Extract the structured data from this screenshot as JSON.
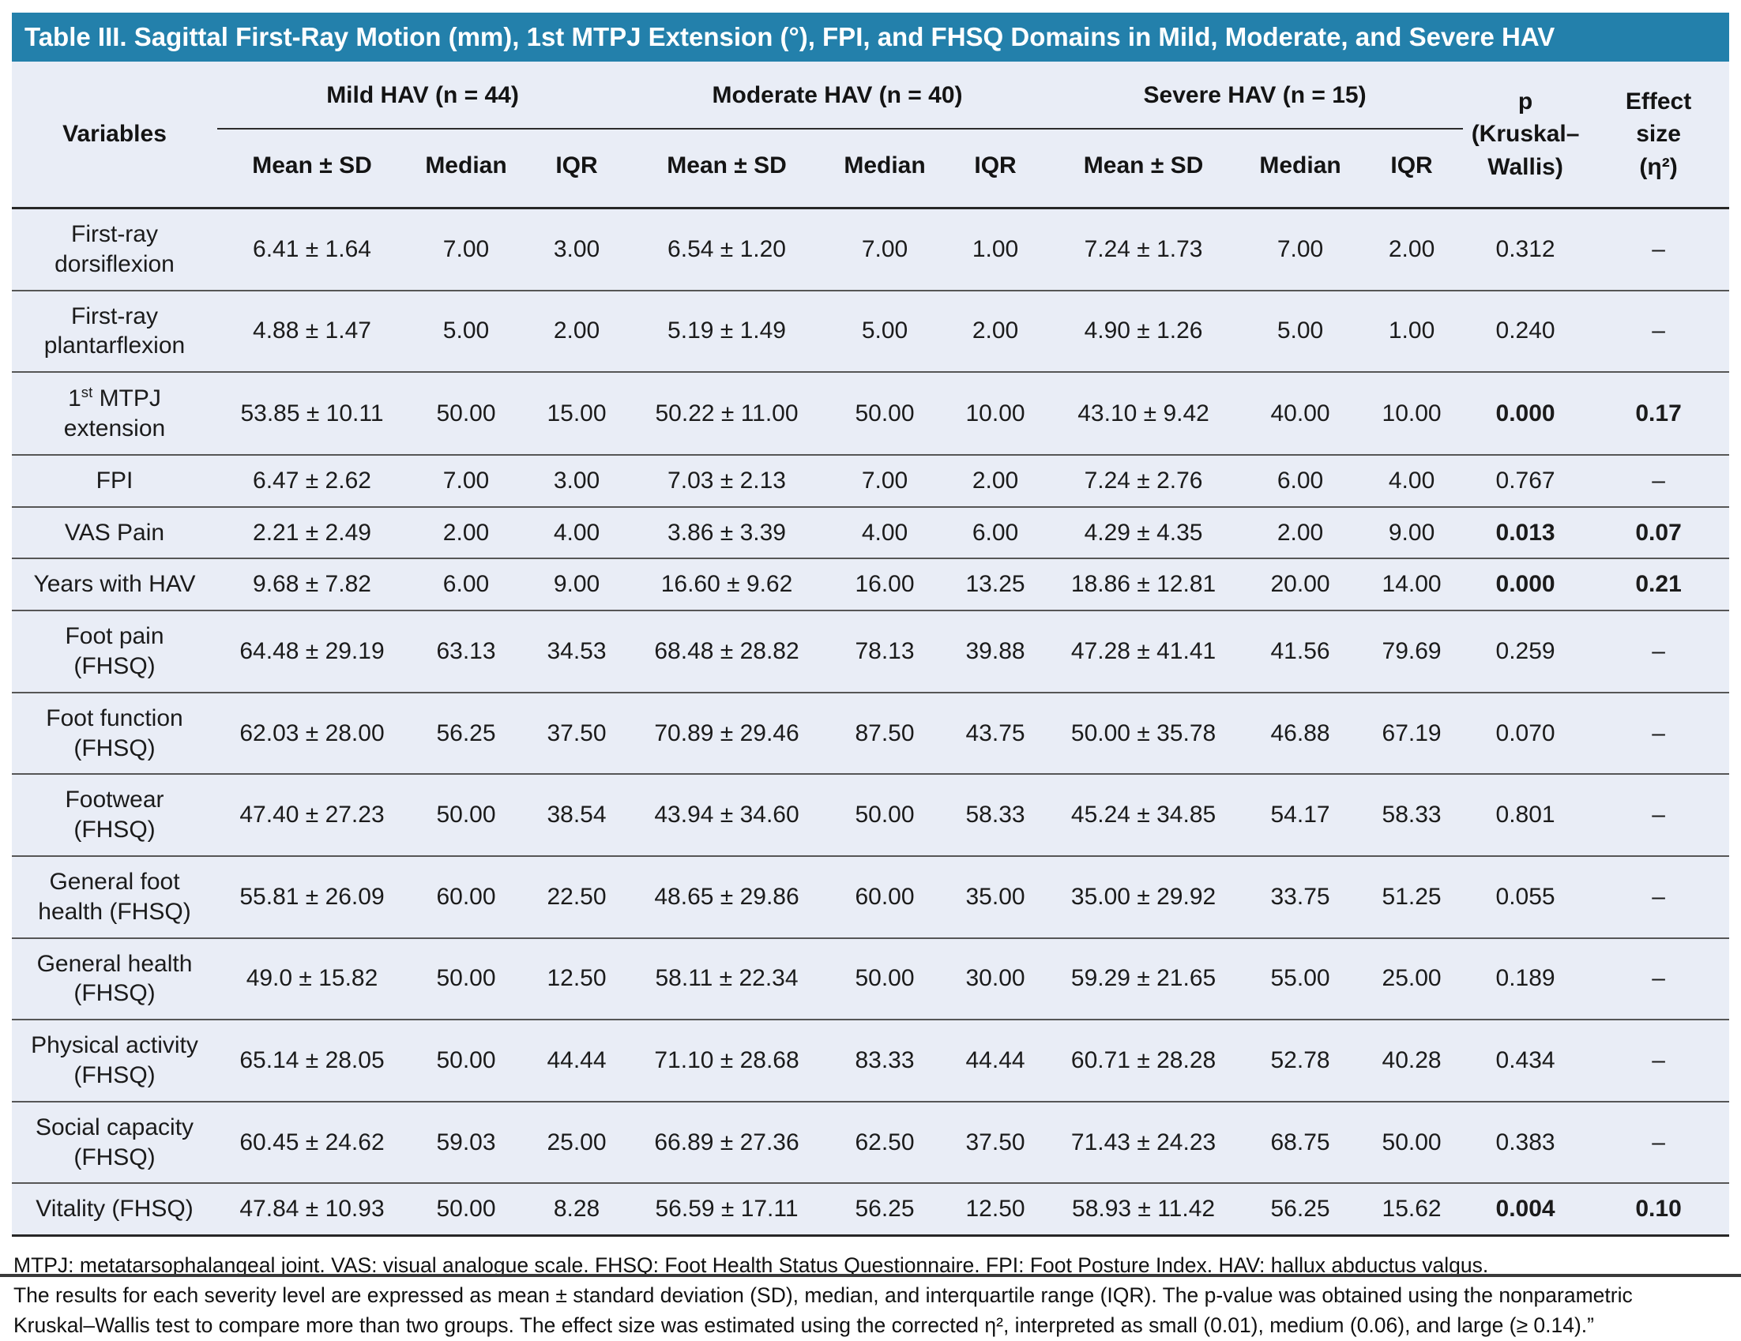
{
  "title": "Table III. Sagittal First-Ray Motion (mm), 1st MTPJ Extension (°), FPI, and FHSQ Domains in Mild, Moderate, and Severe HAV",
  "colors": {
    "title_bar_bg": "#2380ab",
    "title_text": "#ffffff",
    "table_bg": "#e9edf6",
    "rule_dark": "#272727",
    "rule_light": "#565656"
  },
  "table": {
    "variables_header": "Variables",
    "groups": [
      {
        "label": "Mild HAV (n = 44)"
      },
      {
        "label": "Moderate HAV (n = 40)"
      },
      {
        "label": "Severe HAV (n = 15)"
      }
    ],
    "sub_headers": [
      "Mean ± SD",
      "Median",
      "IQR"
    ],
    "p_header": "p\n(Kruskal–\nWallis)",
    "effect_header": "Effect\nsize\n(η²)",
    "rows": [
      {
        "variable": "First-ray dorsiflexion",
        "mild": {
          "mean_sd": "6.41 ± 1.64",
          "median": "7.00",
          "iqr": "3.00"
        },
        "moderate": {
          "mean_sd": "6.54 ± 1.20",
          "median": "7.00",
          "iqr": "1.00"
        },
        "severe": {
          "mean_sd": "7.24 ± 1.73",
          "median": "7.00",
          "iqr": "2.00"
        },
        "p": "0.312",
        "effect_size": "–",
        "significant": false
      },
      {
        "variable": "First-ray plantarflexion",
        "mild": {
          "mean_sd": "4.88 ± 1.47",
          "median": "5.00",
          "iqr": "2.00"
        },
        "moderate": {
          "mean_sd": "5.19 ± 1.49",
          "median": "5.00",
          "iqr": "2.00"
        },
        "severe": {
          "mean_sd": "4.90 ± 1.26",
          "median": "5.00",
          "iqr": "1.00"
        },
        "p": "0.240",
        "effect_size": "–",
        "significant": false
      },
      {
        "variable": "1st MTPJ extension",
        "mild": {
          "mean_sd": "53.85 ± 10.11",
          "median": "50.00",
          "iqr": "15.00"
        },
        "moderate": {
          "mean_sd": "50.22 ± 11.00",
          "median": "50.00",
          "iqr": "10.00"
        },
        "severe": {
          "mean_sd": "43.10 ± 9.42",
          "median": "40.00",
          "iqr": "10.00"
        },
        "p": "0.000",
        "effect_size": "0.17",
        "significant": true
      },
      {
        "variable": "FPI",
        "mild": {
          "mean_sd": "6.47 ± 2.62",
          "median": "7.00",
          "iqr": "3.00"
        },
        "moderate": {
          "mean_sd": "7.03 ± 2.13",
          "median": "7.00",
          "iqr": "2.00"
        },
        "severe": {
          "mean_sd": "7.24 ± 2.76",
          "median": "6.00",
          "iqr": "4.00"
        },
        "p": "0.767",
        "effect_size": "–",
        "significant": false
      },
      {
        "variable": "VAS Pain",
        "mild": {
          "mean_sd": "2.21 ± 2.49",
          "median": "2.00",
          "iqr": "4.00"
        },
        "moderate": {
          "mean_sd": "3.86 ± 3.39",
          "median": "4.00",
          "iqr": "6.00"
        },
        "severe": {
          "mean_sd": "4.29 ± 4.35",
          "median": "2.00",
          "iqr": "9.00"
        },
        "p": "0.013",
        "effect_size": "0.07",
        "significant": true
      },
      {
        "variable": "Years with HAV",
        "mild": {
          "mean_sd": "9.68 ± 7.82",
          "median": "6.00",
          "iqr": "9.00"
        },
        "moderate": {
          "mean_sd": "16.60 ± 9.62",
          "median": "16.00",
          "iqr": "13.25"
        },
        "severe": {
          "mean_sd": "18.86 ± 12.81",
          "median": "20.00",
          "iqr": "14.00"
        },
        "p": "0.000",
        "effect_size": "0.21",
        "significant": true
      },
      {
        "variable": "Foot pain (FHSQ)",
        "mild": {
          "mean_sd": "64.48 ± 29.19",
          "median": "63.13",
          "iqr": "34.53"
        },
        "moderate": {
          "mean_sd": "68.48 ± 28.82",
          "median": "78.13",
          "iqr": "39.88"
        },
        "severe": {
          "mean_sd": "47.28 ± 41.41",
          "median": "41.56",
          "iqr": "79.69"
        },
        "p": "0.259",
        "effect_size": "–",
        "significant": false
      },
      {
        "variable": "Foot function (FHSQ)",
        "mild": {
          "mean_sd": "62.03 ± 28.00",
          "median": "56.25",
          "iqr": "37.50"
        },
        "moderate": {
          "mean_sd": "70.89 ± 29.46",
          "median": "87.50",
          "iqr": "43.75"
        },
        "severe": {
          "mean_sd": "50.00 ± 35.78",
          "median": "46.88",
          "iqr": "67.19"
        },
        "p": "0.070",
        "effect_size": "–",
        "significant": false
      },
      {
        "variable": "Footwear (FHSQ)",
        "mild": {
          "mean_sd": "47.40 ± 27.23",
          "median": "50.00",
          "iqr": "38.54"
        },
        "moderate": {
          "mean_sd": "43.94 ± 34.60",
          "median": "50.00",
          "iqr": "58.33"
        },
        "severe": {
          "mean_sd": "45.24 ± 34.85",
          "median": "54.17",
          "iqr": "58.33"
        },
        "p": "0.801",
        "effect_size": "–",
        "significant": false
      },
      {
        "variable": "General foot health (FHSQ)",
        "mild": {
          "mean_sd": "55.81 ± 26.09",
          "median": "60.00",
          "iqr": "22.50"
        },
        "moderate": {
          "mean_sd": "48.65 ± 29.86",
          "median": "60.00",
          "iqr": "35.00"
        },
        "severe": {
          "mean_sd": "35.00 ± 29.92",
          "median": "33.75",
          "iqr": "51.25"
        },
        "p": "0.055",
        "effect_size": "–",
        "significant": false
      },
      {
        "variable": "General health (FHSQ)",
        "mild": {
          "mean_sd": "49.0 ± 15.82",
          "median": "50.00",
          "iqr": "12.50"
        },
        "moderate": {
          "mean_sd": "58.11 ± 22.34",
          "median": "50.00",
          "iqr": "30.00"
        },
        "severe": {
          "mean_sd": "59.29 ± 21.65",
          "median": "55.00",
          "iqr": "25.00"
        },
        "p": "0.189",
        "effect_size": "–",
        "significant": false
      },
      {
        "variable": "Physical activity (FHSQ)",
        "mild": {
          "mean_sd": "65.14 ± 28.05",
          "median": "50.00",
          "iqr": "44.44"
        },
        "moderate": {
          "mean_sd": "71.10 ± 28.68",
          "median": "83.33",
          "iqr": "44.44"
        },
        "severe": {
          "mean_sd": "60.71 ± 28.28",
          "median": "52.78",
          "iqr": "40.28"
        },
        "p": "0.434",
        "effect_size": "–",
        "significant": false
      },
      {
        "variable": "Social capacity (FHSQ)",
        "mild": {
          "mean_sd": "60.45 ± 24.62",
          "median": "59.03",
          "iqr": "25.00"
        },
        "moderate": {
          "mean_sd": "66.89 ± 27.36",
          "median": "62.50",
          "iqr": "37.50"
        },
        "severe": {
          "mean_sd": "71.43 ± 24.23",
          "median": "68.75",
          "iqr": "50.00"
        },
        "p": "0.383",
        "effect_size": "–",
        "significant": false
      },
      {
        "variable": "Vitality (FHSQ)",
        "mild": {
          "mean_sd": "47.84 ± 10.93",
          "median": "50.00",
          "iqr": "8.28"
        },
        "moderate": {
          "mean_sd": "56.59 ± 17.11",
          "median": "56.25",
          "iqr": "12.50"
        },
        "severe": {
          "mean_sd": "58.93 ± 11.42",
          "median": "56.25",
          "iqr": "15.62"
        },
        "p": "0.004",
        "effect_size": "0.10",
        "significant": true
      }
    ]
  },
  "footnotes": {
    "abbreviations": "MTPJ: metatarsophalangeal joint. VAS: visual analogue scale. FHSQ: Foot Health Status Questionnaire. FPI: Foot Posture Index. HAV: hallux abductus valgus.",
    "methods": "The results for each severity level are expressed as mean ± standard deviation (SD), median, and interquartile range (IQR). The p-value was obtained using the nonparametric\nKruskal–Wallis test to compare more than two groups. The effect size was estimated using the corrected η², interpreted as small (0.01), medium (0.06), and large (≥ 0.14).”"
  }
}
